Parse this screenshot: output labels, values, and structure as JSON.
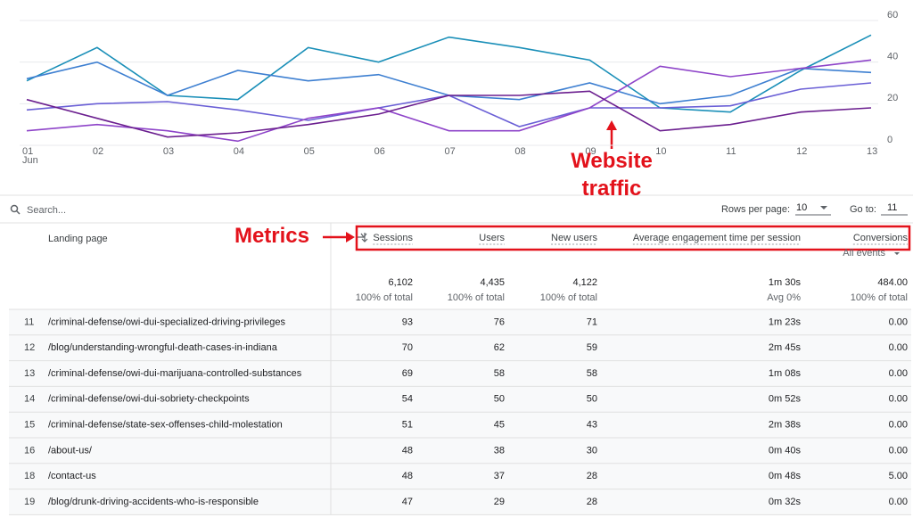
{
  "chart_data": {
    "type": "line",
    "categories": [
      "01",
      "02",
      "03",
      "04",
      "05",
      "06",
      "07",
      "08",
      "09",
      "10",
      "11",
      "12",
      "13"
    ],
    "month": "Jun",
    "series": [
      {
        "color": "#1a8fb8",
        "values": [
          31,
          47,
          24,
          22,
          47,
          40,
          52,
          47,
          41,
          18,
          16,
          36,
          53
        ]
      },
      {
        "color": "#3d7fd1",
        "values": [
          32,
          40,
          24,
          36,
          31,
          34,
          24,
          22,
          30,
          20,
          24,
          37,
          35
        ]
      },
      {
        "color": "#6a5fd6",
        "values": [
          17,
          20,
          21,
          17,
          12,
          18,
          24,
          9,
          18,
          18,
          19,
          27,
          30
        ]
      },
      {
        "color": "#8e44c9",
        "values": [
          7,
          10,
          7,
          2,
          13,
          18,
          7,
          7,
          18,
          38,
          33,
          37,
          41
        ]
      },
      {
        "color": "#6b1f8f",
        "values": [
          22,
          13,
          4,
          6,
          10,
          15,
          24,
          24,
          26,
          7,
          10,
          16,
          18
        ]
      }
    ],
    "ylim": [
      0,
      60
    ],
    "yticks": [
      0,
      20,
      40,
      60
    ],
    "grid": true,
    "annotations": [
      "Website traffic",
      "Metrics"
    ]
  },
  "toolbar": {
    "search": "Search...",
    "rows_per_page_label": "Rows per page:",
    "rows_per_page": "10",
    "go_to_label": "Go to:",
    "go_to": "11"
  },
  "table": {
    "columns": [
      "Landing page",
      "Sessions",
      "Users",
      "New users",
      "Average engagement time per session",
      "Conversions"
    ],
    "conversions_filter": "All events",
    "totals": [
      {
        "value": "6,102",
        "note": "100% of total"
      },
      {
        "value": "4,435",
        "note": "100% of total"
      },
      {
        "value": "4,122",
        "note": "100% of total"
      },
      {
        "value": "1m 30s",
        "note": "Avg 0%"
      },
      {
        "value": "484.00",
        "note": "100% of total"
      }
    ],
    "rows": [
      [
        "11",
        "/criminal-defense/owi-dui-specialized-driving-privileges",
        "93",
        "76",
        "71",
        "1m 23s",
        "0.00"
      ],
      [
        "12",
        "/blog/understanding-wrongful-death-cases-in-indiana",
        "70",
        "62",
        "59",
        "2m 45s",
        "0.00"
      ],
      [
        "13",
        "/criminal-defense/owi-dui-marijuana-controlled-substances",
        "69",
        "58",
        "58",
        "1m 08s",
        "0.00"
      ],
      [
        "14",
        "/criminal-defense/owi-dui-sobriety-checkpoints",
        "54",
        "50",
        "50",
        "0m 52s",
        "0.00"
      ],
      [
        "15",
        "/criminal-defense/state-sex-offenses-child-molestation",
        "51",
        "45",
        "43",
        "2m 38s",
        "0.00"
      ],
      [
        "16",
        "/about-us/",
        "48",
        "38",
        "30",
        "0m 40s",
        "0.00"
      ],
      [
        "18",
        "/contact-us",
        "48",
        "37",
        "28",
        "0m 48s",
        "5.00"
      ],
      [
        "19",
        "/blog/drunk-driving-accidents-who-is-responsible",
        "47",
        "29",
        "28",
        "0m 32s",
        "0.00"
      ]
    ]
  }
}
